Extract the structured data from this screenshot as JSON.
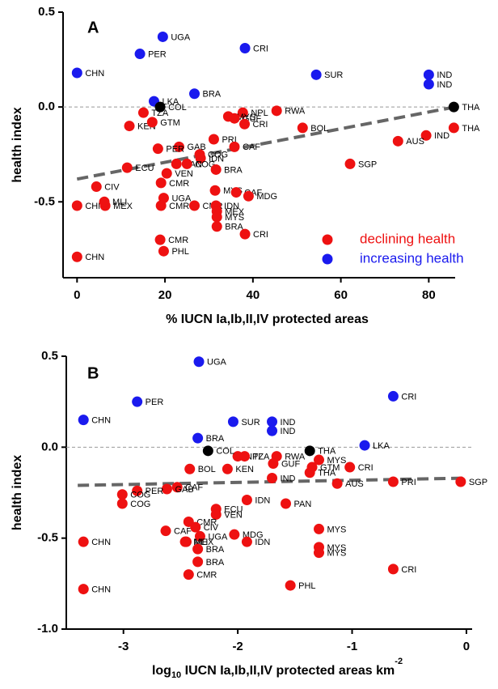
{
  "chart_data": [
    {
      "type": "scatter",
      "panel_label": "A",
      "ylabel": "health index",
      "xlabel": [
        "% IUCN Ia,Ib,II,IV protected areas"
      ],
      "xlim": [
        -3,
        86
      ],
      "ylim": [
        -0.9,
        0.5
      ],
      "xticks": [
        0,
        20,
        40,
        60,
        80
      ],
      "yticks": [
        0.5,
        {
          "value": 0,
          "label": "0.0"
        },
        -0.5
      ],
      "reference_line": 0,
      "legend": "lower right",
      "trend_line": {
        "x": [
          0,
          86
        ],
        "values": [
          -0.38,
          0.0
        ]
      },
      "series": [
        {
          "name": "declining health",
          "color": "#ee1111",
          "labels": [
            "TZA",
            "KEN",
            "GTM",
            "NPL",
            "MYS",
            "GUF",
            "CRI",
            "RWA",
            "BOL",
            "THA",
            "IND",
            "AUS",
            "SGP",
            "PRI",
            "CAF",
            "GAB",
            "PER",
            "COG",
            "IDN",
            "PAN",
            "COG",
            "ECU",
            "VEN",
            "BRA",
            "CMR",
            "CIV",
            "MYS",
            "CAF",
            "MDG",
            "UGA",
            "CHN",
            "MEX",
            "MLI",
            "CMR",
            "CMR",
            "IDN",
            "MEX",
            "MYS",
            "BRA",
            "CRI",
            "CMR",
            "PHL",
            "CHN"
          ],
          "x": [
            15.1,
            11.9,
            17.1,
            37.7,
            34.4,
            35.8,
            38.1,
            45.4,
            51.3,
            85.7,
            79.4,
            73,
            62.1,
            31.1,
            35.8,
            23.2,
            18.4,
            27.9,
            28.1,
            22.6,
            25,
            11.4,
            20.4,
            31.6,
            19.1,
            4.4,
            31.4,
            36.2,
            39,
            19.7,
            0,
            6.4,
            6.2,
            19.1,
            26.7,
            31.6,
            31.8,
            31.8,
            31.8,
            38.2,
            18.9,
            19.7,
            0
          ],
          "values": [
            -0.03,
            -0.1,
            -0.08,
            -0.03,
            -0.05,
            -0.06,
            -0.09,
            -0.02,
            -0.11,
            -0.11,
            -0.15,
            -0.18,
            -0.3,
            -0.17,
            -0.21,
            -0.21,
            -0.22,
            -0.25,
            -0.27,
            -0.3,
            -0.3,
            -0.32,
            -0.35,
            -0.33,
            -0.4,
            -0.42,
            -0.44,
            -0.45,
            -0.47,
            -0.48,
            -0.52,
            -0.52,
            -0.5,
            -0.52,
            -0.52,
            -0.52,
            -0.55,
            -0.58,
            -0.63,
            -0.67,
            -0.7,
            -0.76,
            -0.79
          ]
        },
        {
          "name": "increasing health",
          "color": "#1a1aee",
          "labels": [
            "UGA",
            "PER",
            "CHN",
            "CRI",
            "SUR",
            "IND",
            "IND",
            "BRA",
            "LKA"
          ],
          "x": [
            19.5,
            14.3,
            0,
            38.2,
            54.4,
            80,
            80,
            26.7,
            17.5
          ],
          "values": [
            0.37,
            0.28,
            0.18,
            0.31,
            0.17,
            0.17,
            0.12,
            0.07,
            0.03
          ]
        },
        {
          "color": "#000000",
          "labels": [
            "COL",
            "THA"
          ],
          "x": [
            18.9,
            85.7
          ],
          "values": [
            0.0,
            0.0
          ]
        }
      ]
    },
    {
      "type": "scatter",
      "panel_label": "B",
      "ylabel": "health index",
      "xlabel": [
        "log",
        "10",
        " IUCN Ia,Ib,II,IV protected areas km",
        "-2"
      ],
      "xlim": [
        -3.5,
        0.05
      ],
      "ylim": [
        -1.0,
        0.5
      ],
      "xticks": [
        -3,
        -2,
        -1,
        0
      ],
      "yticks": [
        0.5,
        {
          "value": 0,
          "label": "0.0"
        },
        -0.5,
        {
          "value": -1,
          "label": "-1.0"
        }
      ],
      "reference_line": 0,
      "trend_line": {
        "x": [
          -3.4,
          0
        ],
        "values": [
          -0.21,
          -0.17
        ]
      },
      "series": [
        {
          "color": "#ee1111",
          "labels": [
            "NPL",
            "TZA",
            "RWA",
            "GUF",
            "MYS",
            "GTM",
            "THA",
            "CRI",
            "KEN",
            "BOL",
            "IND",
            "AUS",
            "PRI",
            "SGP",
            "CAF",
            "GAB",
            "PER",
            "COG",
            "COG",
            "PAN",
            "IDN",
            "ECU",
            "VEN",
            "CMR",
            "CAF",
            "CIV",
            "MYS",
            "MDG",
            "UGA",
            "CHN",
            "MLI",
            "MEX",
            "IDN",
            "BRA",
            "MYS",
            "MYS",
            "BRA",
            "CRI",
            "CMR",
            "PHL",
            "CHN"
          ],
          "x": [
            -2.0,
            -1.94,
            -1.66,
            -1.69,
            -1.29,
            -1.35,
            -1.37,
            -1.02,
            -2.09,
            -2.42,
            -1.7,
            -1.13,
            -0.64,
            -0.05,
            -2.53,
            -2.62,
            -2.88,
            -3.01,
            -3.01,
            -1.58,
            -1.92,
            -2.19,
            -2.19,
            -2.43,
            -2.63,
            -2.37,
            -1.29,
            -2.03,
            -2.33,
            -3.35,
            -2.46,
            -2.45,
            -1.92,
            -2.35,
            -1.29,
            -1.29,
            -2.35,
            -0.64,
            -2.43,
            -1.54,
            -3.35
          ],
          "values": [
            -0.05,
            -0.05,
            -0.05,
            -0.09,
            -0.07,
            -0.11,
            -0.14,
            -0.11,
            -0.12,
            -0.12,
            -0.17,
            -0.2,
            -0.19,
            -0.19,
            -0.22,
            -0.23,
            -0.24,
            -0.26,
            -0.31,
            -0.31,
            -0.29,
            -0.34,
            -0.37,
            -0.41,
            -0.46,
            -0.44,
            -0.45,
            -0.48,
            -0.49,
            -0.52,
            -0.52,
            -0.52,
            -0.52,
            -0.56,
            -0.55,
            -0.58,
            -0.63,
            -0.67,
            -0.7,
            -0.76,
            -0.78
          ]
        },
        {
          "color": "#1a1aee",
          "labels": [
            "UGA",
            "PER",
            "CHN",
            "CRI",
            "SUR",
            "IND",
            "IND",
            "BRA",
            "LKA"
          ],
          "x": [
            -2.34,
            -2.88,
            -3.35,
            -0.64,
            -2.04,
            -1.7,
            -1.7,
            -2.35,
            -0.89
          ],
          "values": [
            0.47,
            0.25,
            0.15,
            0.28,
            0.14,
            0.14,
            0.09,
            0.05,
            0.01
          ]
        },
        {
          "color": "#000000",
          "labels": [
            "COL",
            "THA"
          ],
          "x": [
            -2.26,
            -1.37
          ],
          "values": [
            -0.02,
            -0.02
          ]
        }
      ]
    }
  ]
}
